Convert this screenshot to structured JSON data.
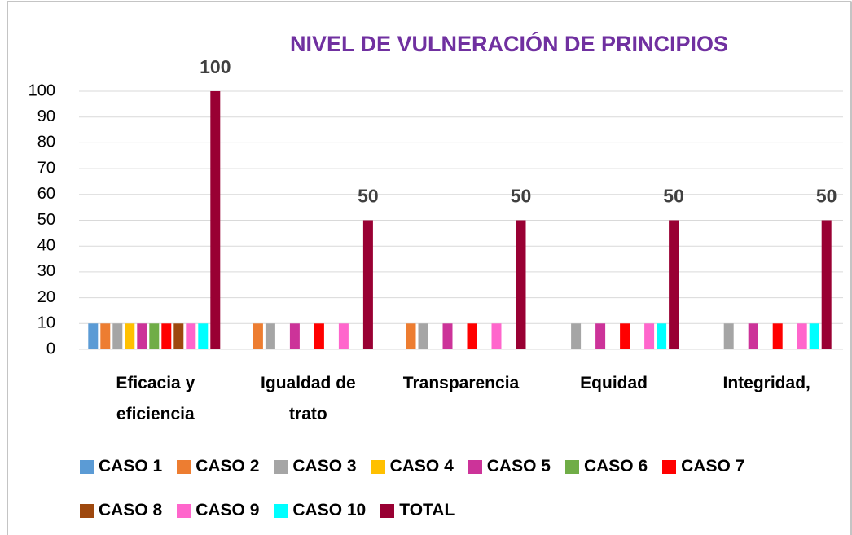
{
  "chart_data": {
    "type": "bar",
    "title": "NIVEL DE VULNERACIÓN DE PRINCIPIOS",
    "categories": [
      "Eficacia y eficiencia",
      "Igualdad de trato",
      "Transparencia",
      "Equidad",
      "Integridad,"
    ],
    "series": [
      {
        "name": "CASO 1",
        "color": "#5b9bd5",
        "values": [
          10,
          0,
          0,
          0,
          0
        ]
      },
      {
        "name": "CASO 2",
        "color": "#ed7d31",
        "values": [
          10,
          10,
          10,
          0,
          0
        ]
      },
      {
        "name": "CASO 3",
        "color": "#a5a5a5",
        "values": [
          10,
          10,
          10,
          10,
          10
        ]
      },
      {
        "name": "CASO 4",
        "color": "#ffc000",
        "values": [
          10,
          0,
          0,
          0,
          0
        ]
      },
      {
        "name": "CASO 5",
        "color": "#cc3399",
        "values": [
          10,
          10,
          10,
          10,
          10
        ]
      },
      {
        "name": "CASO 6",
        "color": "#70ad47",
        "values": [
          10,
          0,
          0,
          0,
          0
        ]
      },
      {
        "name": "CASO 7",
        "color": "#ff0000",
        "values": [
          10,
          10,
          10,
          10,
          10
        ]
      },
      {
        "name": "CASO 8",
        "color": "#9e480e",
        "values": [
          10,
          0,
          0,
          0,
          0
        ]
      },
      {
        "name": "CASO 9",
        "color": "#ff66cc",
        "values": [
          10,
          10,
          10,
          10,
          10
        ]
      },
      {
        "name": "CASO 10",
        "color": "#00ffff",
        "values": [
          10,
          0,
          0,
          10,
          10
        ]
      },
      {
        "name": "TOTAL",
        "color": "#990033",
        "values": [
          100,
          50,
          50,
          50,
          50
        ]
      }
    ],
    "ylim": [
      0,
      100
    ],
    "yticks": [
      0,
      10,
      20,
      30,
      40,
      50,
      60,
      70,
      80,
      90,
      100
    ],
    "grid": true,
    "legend": "bottom"
  }
}
